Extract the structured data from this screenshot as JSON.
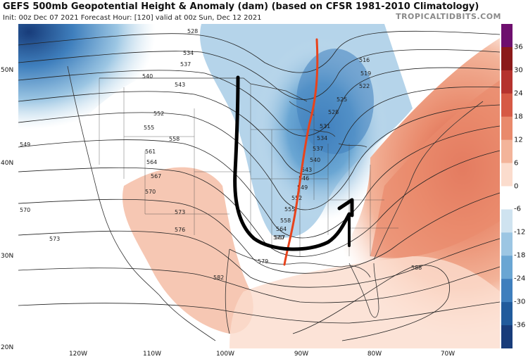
{
  "header": {
    "title": "GEFS 500mb Geopotential Height & Anomaly (dam) (based on CFSR 1981-2010 Climatology)",
    "subtitle": "Init: 00z Dec 07 2021   Forecast Hour: [120]   valid at 00z Sun, Dec 12 2021",
    "brand": "TROPICALTIDBITS.COM"
  },
  "map": {
    "lat_labels": [
      "50N",
      "40N",
      "30N",
      "20N"
    ],
    "lon_labels": [
      "120W",
      "110W",
      "100W",
      "90W",
      "80W",
      "70W"
    ],
    "contour_labels": [
      "528",
      "534",
      "537",
      "540",
      "543",
      "549",
      "552",
      "555",
      "558",
      "561",
      "564",
      "567",
      "570",
      "573",
      "576",
      "579",
      "582",
      "588",
      "516",
      "519",
      "522",
      "525",
      "528",
      "531",
      "534",
      "537",
      "540",
      "543",
      "546",
      "549",
      "552",
      "555",
      "558",
      "564",
      "567",
      "570",
      "570",
      "573"
    ],
    "annotations": {
      "trough_axis_color": "#e8431c",
      "arrow_color": "#000000"
    }
  },
  "colorbar": {
    "ticks": [
      "36",
      "30",
      "24",
      "18",
      "12",
      "6",
      "0",
      "-6",
      "-12",
      "-18",
      "-24",
      "-30",
      "-36"
    ],
    "colors": [
      "#6e0f6e",
      "#8b1a1a",
      "#b5332e",
      "#d65a45",
      "#e98a6c",
      "#f3b49a",
      "#fbdccd",
      "#ffffff",
      "#cfe3f0",
      "#9cc6e3",
      "#6aa6d3",
      "#3f7fbd",
      "#215b9c",
      "#183c7a"
    ]
  }
}
